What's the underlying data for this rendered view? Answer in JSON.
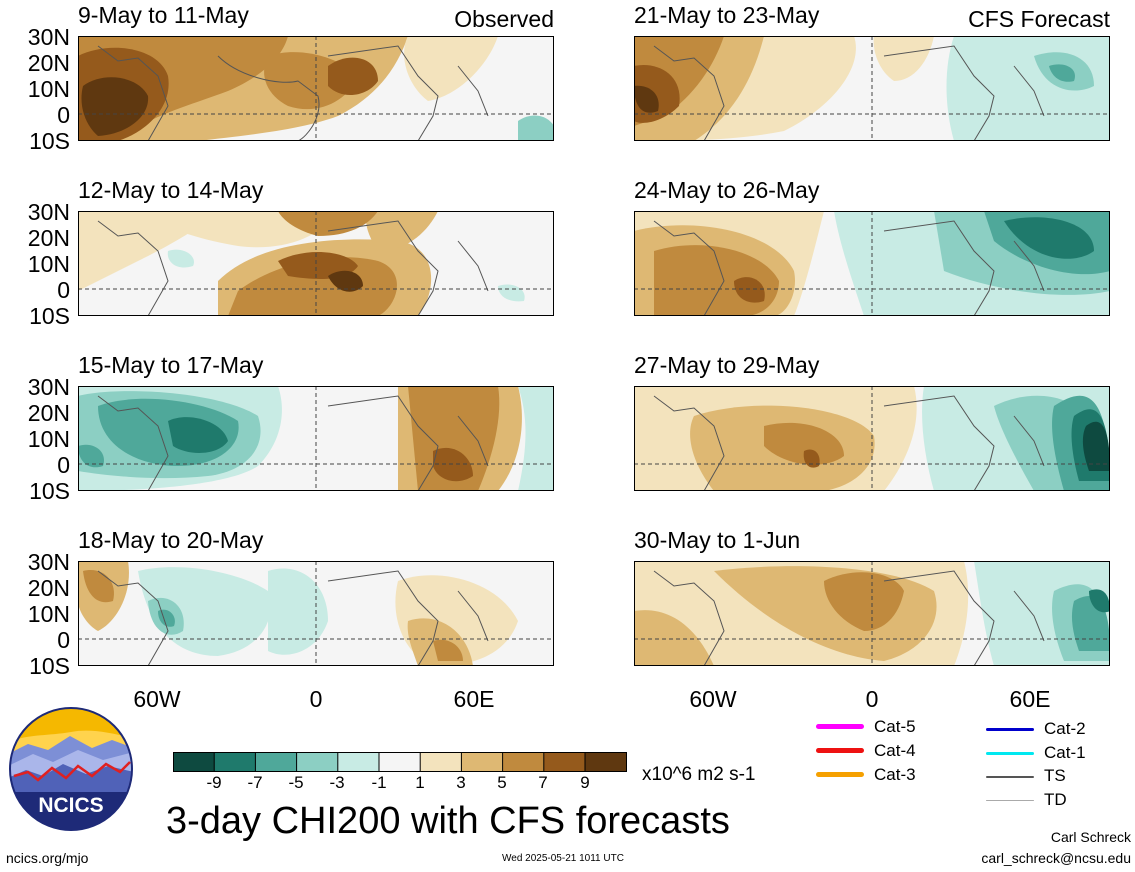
{
  "panels": [
    {
      "title": "9-May to 11-May",
      "tag": "Observed"
    },
    {
      "title": "12-May to 14-May",
      "tag": ""
    },
    {
      "title": "15-May to 17-May",
      "tag": ""
    },
    {
      "title": "18-May to 20-May",
      "tag": ""
    },
    {
      "title": "21-May to 23-May",
      "tag": "CFS Forecast"
    },
    {
      "title": "24-May to 26-May",
      "tag": ""
    },
    {
      "title": "27-May to 29-May",
      "tag": ""
    },
    {
      "title": "30-May to 1-Jun",
      "tag": ""
    }
  ],
  "lat_labels": [
    "30N",
    "20N",
    "10N",
    "0",
    "10S"
  ],
  "lon_labels": [
    "60W",
    "0",
    "60E"
  ],
  "colorbar": {
    "ticks": [
      "-9",
      "-7",
      "-5",
      "-3",
      "-1",
      "1",
      "3",
      "5",
      "7",
      "9"
    ],
    "units": "x10^6 m2 s-1",
    "colors": [
      "#0e4a40",
      "#1f7a6c",
      "#4fa89a",
      "#8ccfc3",
      "#c8ebe4",
      "#f5f5f5",
      "#f3e3bd",
      "#deb873",
      "#c08a3e",
      "#955a1c",
      "#5f3810"
    ]
  },
  "legend": [
    {
      "label": "Cat-5",
      "color": "#ff00ff"
    },
    {
      "label": "Cat-4",
      "color": "#ee1111"
    },
    {
      "label": "Cat-3",
      "color": "#f5a000"
    },
    {
      "label": "Cat-2",
      "color": "#0000cc"
    },
    {
      "label": "Cat-1",
      "color": "#00e8f0"
    },
    {
      "label": "TS",
      "color": "#555555"
    },
    {
      "label": "TD",
      "color": "#aaaaaa"
    }
  ],
  "logo": {
    "text": "NCICS"
  },
  "main_title": "3-day CHI200 with CFS forecasts",
  "footer": {
    "url": "ncics.org/mjo",
    "timestamp": "Wed 2025-05-21 1011 UTC",
    "author": "Carl Schreck",
    "email": "carl_schreck@ncsu.edu"
  }
}
